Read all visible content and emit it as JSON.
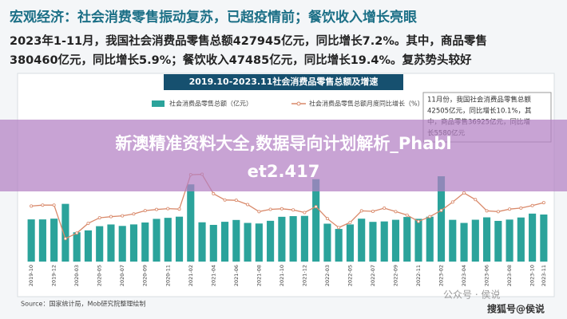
{
  "header": {
    "title": "宏观经济：社会消费零售振动复苏，已超疫情前；餐饮收入增长亮眼",
    "lines": [
      "2023年1-11月，我国社会消费品零售总额427945亿元，同比增长7.2%。其中，商品零售",
      "380460亿元，同比增长5.9%；餐饮收入47485亿元，同比增长19.4%。复苏势头较好"
    ]
  },
  "chart_data": {
    "type": "bar",
    "title": "2019.10-2023.11社会消费品零售总额及增速",
    "categories": [
      "2019-10",
      null,
      "2019-12",
      null,
      "2020-03",
      null,
      "2020-05",
      null,
      "2020-07",
      null,
      "2020-09",
      null,
      "2020-11",
      null,
      "2021-02",
      null,
      "2021-04",
      null,
      "2021-06",
      null,
      "2021-08",
      null,
      "2021-10",
      null,
      "2021-12",
      null,
      "2022-03",
      null,
      "2022-05",
      null,
      "2022-07",
      null,
      "2022-09",
      null,
      "2022-11",
      null,
      "2023-02",
      null,
      "2023-04",
      null,
      "2023-06",
      null,
      "2023-08",
      null,
      "2023-10",
      "2023-11"
    ],
    "series": [
      {
        "name": "社会消费品零售总额（亿元）",
        "color": "#2ba39b",
        "values": [
          38104,
          38094,
          38777,
          52130,
          26450,
          28178,
          31973,
          33526,
          32203,
          33571,
          35295,
          38576,
          39514,
          40566,
          69737,
          35484,
          33153,
          35945,
          37586,
          34925,
          34395,
          36833,
          40454,
          41043,
          41269,
          74426,
          34233,
          29483,
          33547,
          38742,
          35870,
          36258,
          37745,
          40271,
          38615,
          40542,
          77067,
          37715,
          34910,
          37803,
          39951,
          36761,
          37933,
          39826,
          43333,
          42505
        ]
      },
      {
        "name": "社会消费品零售总额月度同比增长（%）",
        "color": "#d9896a",
        "axis": "y2",
        "values": [
          7.2,
          8.0,
          8.0,
          -20.5,
          -15.8,
          -7.5,
          -2.8,
          -1.8,
          -1.1,
          0.5,
          3.3,
          4.3,
          5.0,
          4.6,
          33.8,
          34.2,
          17.7,
          12.4,
          12.1,
          8.5,
          2.5,
          4.4,
          4.9,
          3.9,
          1.7,
          6.7,
          -3.5,
          -11.1,
          -6.7,
          3.1,
          2.7,
          5.4,
          2.5,
          -0.5,
          -5.9,
          -1.8,
          3.5,
          10.6,
          18.4,
          12.7,
          3.1,
          2.5,
          4.6,
          5.5,
          7.6,
          10.1
        ]
      }
    ],
    "ylim": [
      0,
      85000
    ],
    "y2lim": [
      -40,
      40
    ],
    "annotation": [
      "11月份，我国社会消费品零售总额",
      "42505亿元，同比增长10.1%，其",
      "中，商品零售36925亿元，同比增",
      "长5580亿元"
    ]
  },
  "overlay": [
    "新澳精准资料大全,数据导向计划解析_Phabl",
    "et2.417"
  ],
  "source": "Source：国家统计局，Mob研究院整理绘制",
  "watermark": [
    "公众号 · 侯说",
    "搜狐号@侯说"
  ]
}
